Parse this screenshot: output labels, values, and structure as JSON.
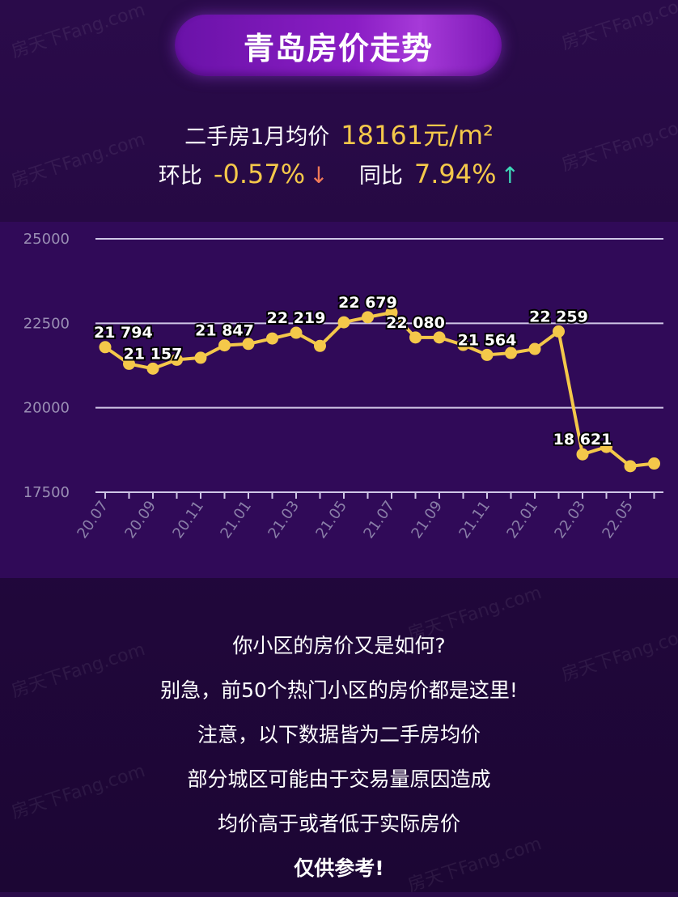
{
  "header": {
    "title": "青岛房价走势"
  },
  "stats": {
    "avg_label": "二手房1月均价",
    "avg_value": "18161元/m²",
    "mom_label": "环比",
    "mom_value": "-0.57%",
    "mom_arrow": "↓",
    "yoy_label": "同比",
    "yoy_value": "7.94%",
    "yoy_arrow": "↑"
  },
  "watermark": "房天下Fang.com",
  "colors": {
    "line": "#f4c84a",
    "value_text": "#f4c84a",
    "down": "#f07a58",
    "up": "#3ed8b8"
  },
  "chart_data": {
    "type": "line",
    "x": [
      "20.07",
      "20.08",
      "20.09",
      "20.10",
      "20.11",
      "20.12",
      "21.01",
      "21.02",
      "21.03",
      "21.04",
      "21.05",
      "21.06",
      "21.07",
      "21.08",
      "21.09",
      "21.10",
      "21.11",
      "21.12",
      "22.01",
      "22.02",
      "22.03",
      "22.04",
      "22.05",
      "22.06"
    ],
    "x_tick_labels": [
      "20.07",
      "20.09",
      "20.11",
      "21.01",
      "21.03",
      "21.05",
      "21.07",
      "21.09",
      "21.11",
      "22.01",
      "22.03",
      "22.05"
    ],
    "values": [
      21794,
      21300,
      21157,
      21420,
      21480,
      21847,
      21890,
      22050,
      22219,
      21830,
      22530,
      22679,
      22820,
      22080,
      22080,
      21860,
      21564,
      21620,
      21740,
      22259,
      18621,
      18840,
      18270,
      18350
    ],
    "labeled_points": [
      {
        "x": "20.07",
        "label": "21 794"
      },
      {
        "x": "20.09",
        "label": "21 157"
      },
      {
        "x": "20.12",
        "label": "21 847"
      },
      {
        "x": "21.03",
        "label": "22 219"
      },
      {
        "x": "21.06",
        "label": "22 679"
      },
      {
        "x": "21.08",
        "label": "22 080"
      },
      {
        "x": "21.11",
        "label": "21 564"
      },
      {
        "x": "22.02",
        "label": "22 259"
      },
      {
        "x": "22.03",
        "label": "18 621"
      }
    ],
    "y_ticks": [
      25000,
      22500,
      20000,
      17500
    ],
    "ylim": [
      17500,
      25000
    ],
    "grid": true,
    "legend": "none",
    "title": "",
    "xlabel": "",
    "ylabel": ""
  },
  "footer": {
    "lines": [
      "你小区的房价又是如何?",
      "别急，前50个热门小区的房价都是这里!",
      "注意，以下数据皆为二手房均价",
      "部分城区可能由于交易量原因造成",
      "均价高于或者低于实际房价"
    ],
    "final": "仅供参考!"
  }
}
